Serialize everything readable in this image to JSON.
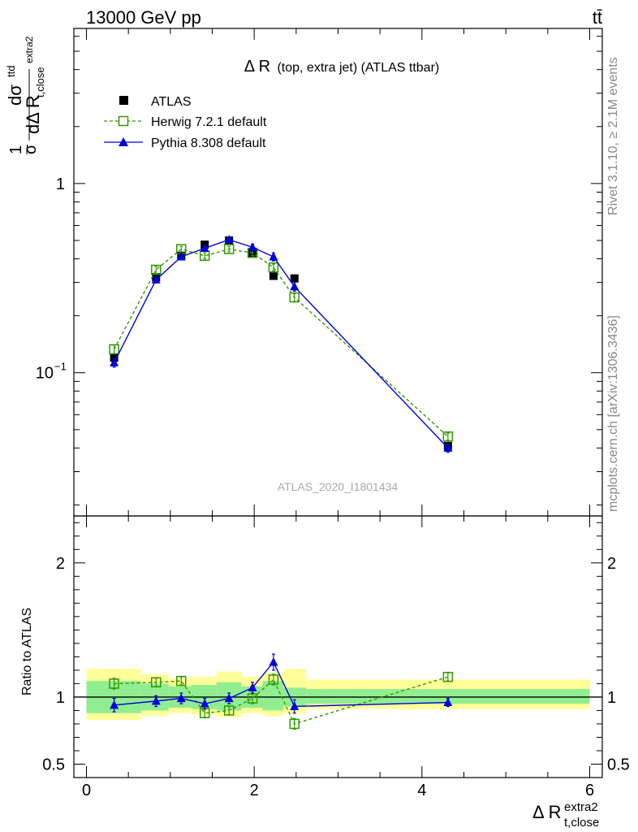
{
  "header": {
    "left": "13000 GeV pp",
    "right": "tt̄"
  },
  "side_texts": {
    "rivet": "Rivet 3.1.10, ≥ 2.1M events",
    "mcplots": "mcplots.cern.ch [arXiv:1306.3436]"
  },
  "plot_title": {
    "main": "Δ R",
    "sub": "(top, extra jet) (ATLAS ttbar)"
  },
  "watermark": "ATLAS_2020_I1801434",
  "y_axis_main": {
    "num": "dσ",
    "num_sup": "ttd",
    "den": "dΔ R",
    "den_sub": "t,close",
    "den_sup": "extra2",
    "pre": "1",
    "pre_den": "σ"
  },
  "y_axis_ratio_label": "Ratio to ATLAS",
  "x_axis_label": {
    "main": "Δ R",
    "sup": "extra2",
    "sub": "t,close"
  },
  "colors": {
    "atlas": "#000000",
    "herwig": "#339900",
    "pythia": "#0000dd",
    "band_inner": "#90ee90",
    "band_outer": "#ffff99"
  },
  "chart_data": {
    "type": "scatter",
    "x_range": [
      -0.15,
      6.15
    ],
    "main": {
      "y_scale": "log",
      "ylim": [
        0.0175,
        6.6
      ],
      "y_ticks": [
        {
          "v": 0.1,
          "base": "10",
          "exp": "−1"
        },
        {
          "v": 1,
          "label": "1"
        }
      ]
    },
    "ratio": {
      "ylim": [
        0.4,
        2.35
      ],
      "y_ticks": [
        "0.5",
        "1",
        "2"
      ]
    },
    "x_ticks": [
      "0",
      "2",
      "4",
      "6"
    ],
    "bins": [
      [
        0.0,
        0.65
      ],
      [
        0.65,
        0.98
      ],
      [
        0.98,
        1.25
      ],
      [
        1.25,
        1.55
      ],
      [
        1.55,
        1.85
      ],
      [
        1.85,
        2.1
      ],
      [
        2.1,
        2.35
      ],
      [
        2.35,
        2.62
      ],
      [
        2.62,
        6.0
      ]
    ],
    "band_inner": [
      [
        0.88,
        1.12
      ],
      [
        0.9,
        1.1
      ],
      [
        0.92,
        1.08
      ],
      [
        0.91,
        1.09
      ],
      [
        0.9,
        1.11
      ],
      [
        0.92,
        1.08
      ],
      [
        0.9,
        1.12
      ],
      [
        0.93,
        1.07
      ],
      [
        0.95,
        1.06
      ]
    ],
    "band_outer": [
      [
        0.83,
        1.21
      ],
      [
        0.86,
        1.17
      ],
      [
        0.88,
        1.14
      ],
      [
        0.87,
        1.15
      ],
      [
        0.85,
        1.19
      ],
      [
        0.88,
        1.15
      ],
      [
        0.86,
        1.18
      ],
      [
        0.88,
        1.21
      ],
      [
        0.91,
        1.13
      ]
    ],
    "series": [
      {
        "name": "ATLAS",
        "x": [
          0.33,
          0.83,
          1.13,
          1.41,
          1.7,
          1.98,
          2.23,
          2.48,
          4.31
        ],
        "y": [
          0.12,
          0.32,
          0.415,
          0.475,
          0.5,
          0.43,
          0.325,
          0.315,
          0.041
        ],
        "ratio": [
          1,
          1,
          1,
          1,
          1,
          1,
          1,
          1,
          1
        ]
      },
      {
        "name": "Herwig 7.2.1 default",
        "x": [
          0.33,
          0.83,
          1.13,
          1.41,
          1.7,
          1.98,
          2.23,
          2.48,
          4.31
        ],
        "y": [
          0.133,
          0.35,
          0.45,
          0.415,
          0.45,
          0.43,
          0.36,
          0.25,
          0.046
        ],
        "y_err": [
          0.007,
          0.015,
          0.015,
          0.015,
          0.015,
          0.015,
          0.015,
          0.012,
          0.002
        ],
        "ratio": [
          1.1,
          1.11,
          1.12,
          0.88,
          0.9,
          0.99,
          1.13,
          0.8,
          1.15
        ],
        "ratio_err": [
          0.04,
          0.03,
          0.03,
          0.03,
          0.03,
          0.04,
          0.04,
          0.04,
          0.03
        ]
      },
      {
        "name": "Pythia 8.308 default",
        "x": [
          0.33,
          0.83,
          1.13,
          1.41,
          1.7,
          1.98,
          2.23,
          2.48,
          4.31
        ],
        "y": [
          0.113,
          0.31,
          0.41,
          0.455,
          0.505,
          0.46,
          0.41,
          0.285,
          0.04
        ],
        "y_err": [
          0.006,
          0.012,
          0.013,
          0.014,
          0.015,
          0.018,
          0.02,
          0.015,
          0.002
        ],
        "ratio": [
          0.94,
          0.97,
          0.99,
          0.95,
          0.99,
          1.07,
          1.26,
          0.93,
          0.96
        ],
        "ratio_err": [
          0.05,
          0.04,
          0.04,
          0.04,
          0.04,
          0.04,
          0.06,
          0.05,
          0.03
        ]
      }
    ]
  }
}
